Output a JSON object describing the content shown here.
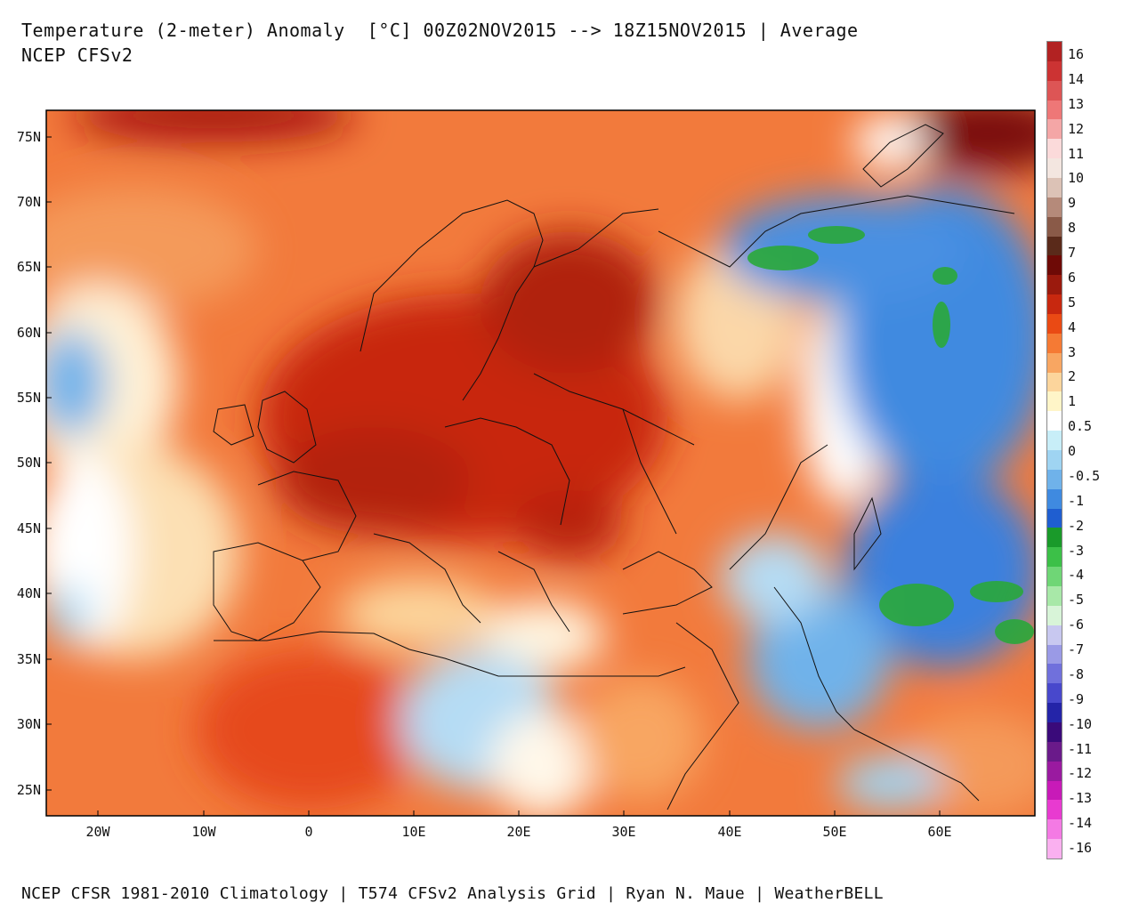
{
  "header": {
    "title": "Temperature (2-meter) Anomaly  [°C] 00Z02NOV2015 --> 18Z15NOV2015 | Average",
    "subtitle": "NCEP CFSv2"
  },
  "footer": {
    "credit": "NCEP CFSR 1981-2010 Climatology | T574 CFSv2 Analysis Grid | Ryan N. Maue | WeatherBELL"
  },
  "map": {
    "lat_labels": [
      "75N",
      "70N",
      "65N",
      "60N",
      "55N",
      "50N",
      "45N",
      "40N",
      "35N",
      "30N",
      "25N"
    ],
    "lon_labels": [
      "20W",
      "10W",
      "0",
      "10E",
      "20E",
      "30E",
      "40E",
      "50E",
      "60E"
    ],
    "lat_range": [
      23,
      77
    ],
    "lon_range": [
      -25,
      69
    ]
  },
  "colorbar": {
    "labels": [
      "16",
      "14",
      "13",
      "12",
      "11",
      "10",
      "9",
      "8",
      "7",
      "6",
      "5",
      "4",
      "3",
      "2",
      "1",
      "0.5",
      "0",
      "-0.5",
      "-1",
      "-2",
      "-3",
      "-4",
      "-5",
      "-6",
      "-7",
      "-8",
      "-9",
      "-10",
      "-11",
      "-12",
      "-13",
      "-14",
      "-16"
    ],
    "colors": [
      "#b22222",
      "#cc3333",
      "#dd5555",
      "#ee7777",
      "#f4a6a6",
      "#fbdada",
      "#f3e6e0",
      "#dcc2b6",
      "#b58a7a",
      "#8a5a48",
      "#5a2a1a",
      "#6e0a06",
      "#9b1a0d",
      "#c8280f",
      "#ea4a14",
      "#f57a34",
      "#f8a662",
      "#fcd59c",
      "#fff5c8",
      "#ffffff",
      "#c8eef8",
      "#9fd4f2",
      "#6fb2ea",
      "#3f8ae0",
      "#1f5ed0",
      "#1a9a2a",
      "#3cc048",
      "#6fd676",
      "#a8e8a8",
      "#d8f4d8",
      "#c8c8f0",
      "#9a9ae6",
      "#7070dc",
      "#4848cc",
      "#2424a8",
      "#3a0a7a",
      "#6a1a8a",
      "#9a1aa0",
      "#c81ab8",
      "#e83ad0",
      "#f47ae4",
      "#fab0f0"
    ]
  }
}
